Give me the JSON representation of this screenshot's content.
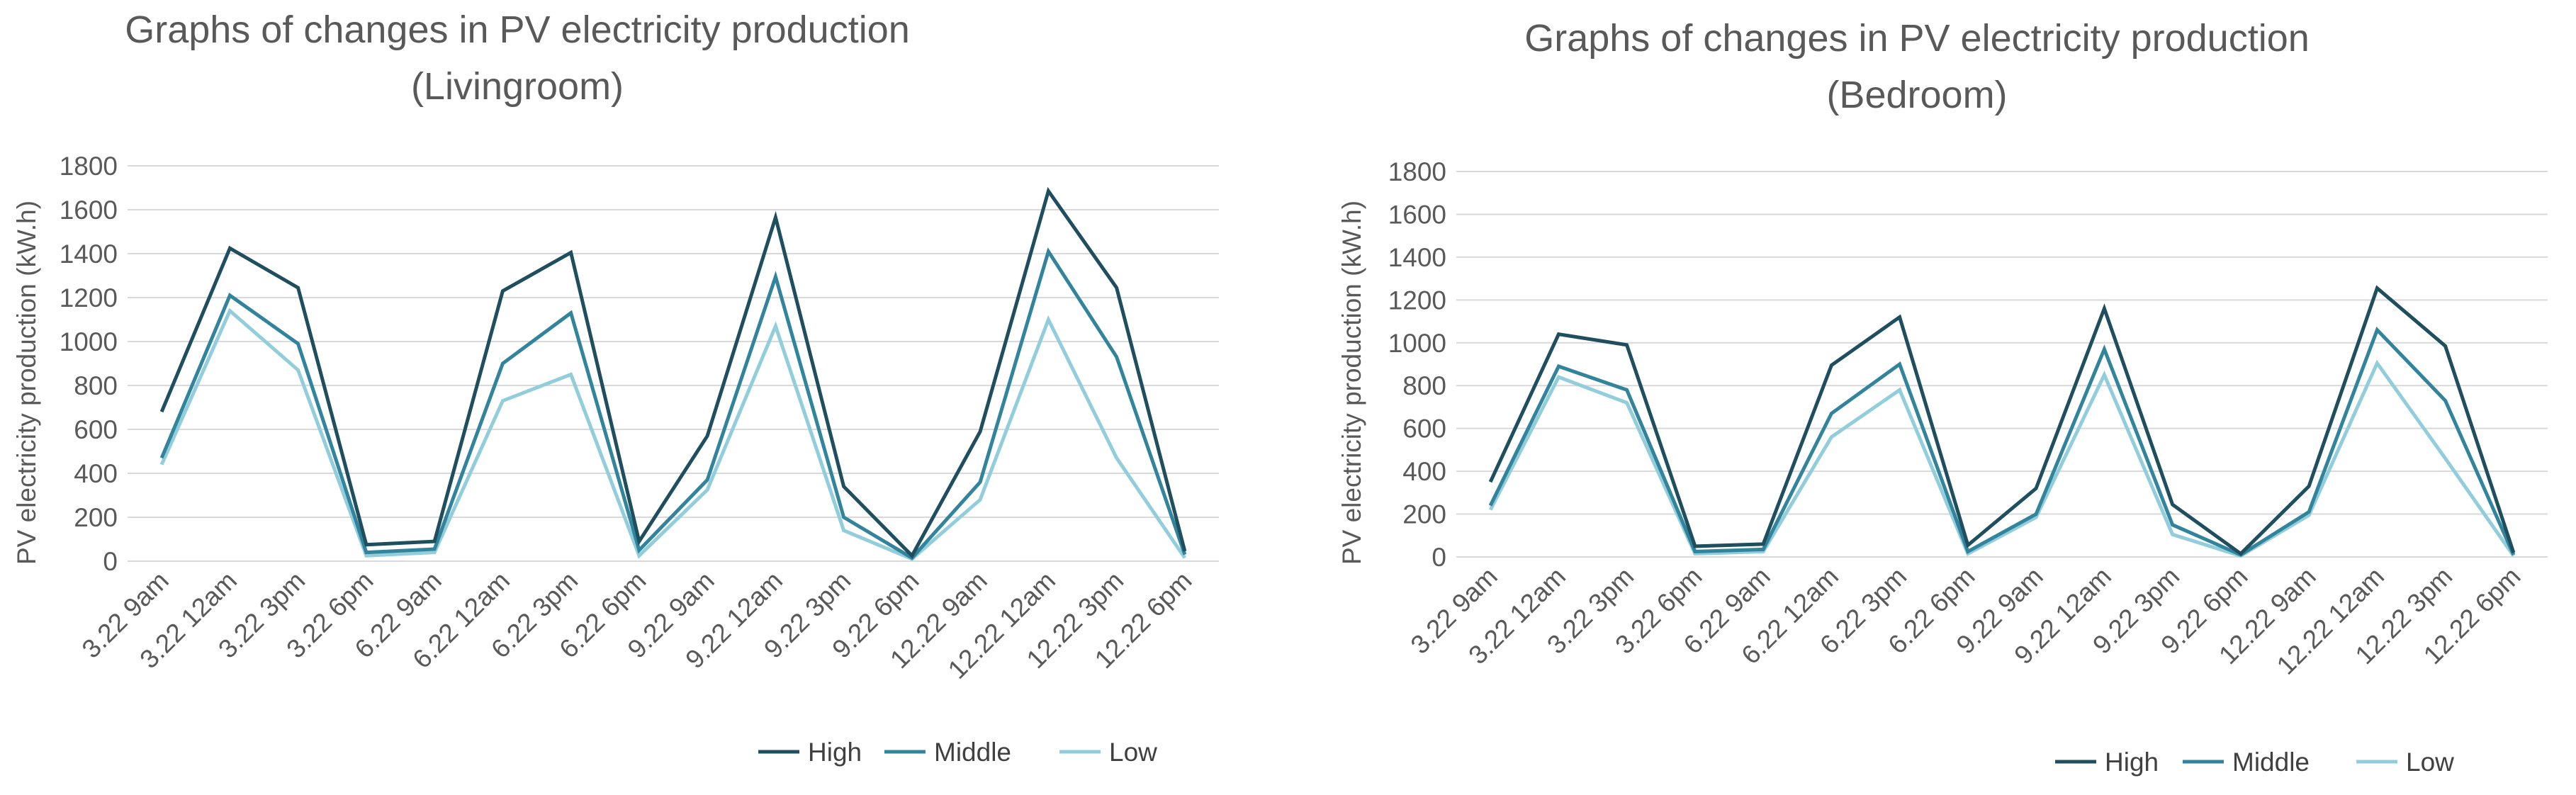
{
  "chart_data": [
    {
      "type": "line",
      "title": "Graphs of changes in PV electricity production",
      "subtitle": "(Livingroom)",
      "xlabel": "",
      "ylabel": "PV electricity production (kW.h)",
      "ylim": [
        0,
        1800
      ],
      "yticks": [
        "0",
        "200",
        "400",
        "600",
        "800",
        "1000",
        "1200",
        "1400",
        "1600",
        "1800"
      ],
      "grid": true,
      "legend_position": "bottom-right",
      "categories": [
        "3.22  9am",
        "3.22  12am",
        "3.22  3pm",
        "3.22  6pm",
        "6.22  9am",
        "6.22  12am",
        "6.22  3pm",
        "6.22  6pm",
        "9.22  9am",
        "9.22  12am",
        "9.22  3pm",
        "9.22  6pm",
        "12.22  9am",
        "12.22  12am",
        "12.22  3pm",
        "12.22  6pm"
      ],
      "series": [
        {
          "name": "High",
          "color": "#1f4e5f",
          "values": [
            680,
            1425,
            1245,
            75,
            90,
            1230,
            1405,
            90,
            570,
            1565,
            340,
            25,
            590,
            1685,
            1245,
            45
          ]
        },
        {
          "name": "Middle",
          "color": "#31849b",
          "values": [
            470,
            1210,
            990,
            40,
            55,
            900,
            1130,
            50,
            370,
            1295,
            200,
            15,
            360,
            1410,
            930,
            30
          ]
        },
        {
          "name": "Low",
          "color": "#92cddc",
          "values": [
            440,
            1140,
            870,
            25,
            40,
            730,
            850,
            25,
            325,
            1070,
            140,
            10,
            280,
            1100,
            470,
            15
          ]
        }
      ]
    },
    {
      "type": "line",
      "title": "Graphs of changes in PV electricity production",
      "subtitle": "(Bedroom)",
      "xlabel": "",
      "ylabel": "PV electricity production (kW.h)",
      "ylim": [
        0,
        1800
      ],
      "yticks": [
        "0",
        "200",
        "400",
        "600",
        "800",
        "1000",
        "1200",
        "1400",
        "1600",
        "1800"
      ],
      "grid": true,
      "legend_position": "bottom-right",
      "categories": [
        "3.22  9am",
        "3.22  12am",
        "3.22  3pm",
        "3.22  6pm",
        "6.22  9am",
        "6.22  12am",
        "6.22  3pm",
        "6.22  6pm",
        "9.22  9am",
        "9.22  12am",
        "9.22  3pm",
        "9.22  6pm",
        "12.22  9am",
        "12.22  12am",
        "12.22  3pm",
        "12.22  6pm"
      ],
      "series": [
        {
          "name": "High",
          "color": "#1f4e5f",
          "values": [
            350,
            1040,
            990,
            50,
            60,
            895,
            1120,
            55,
            320,
            1160,
            245,
            15,
            330,
            1255,
            985,
            20
          ]
        },
        {
          "name": "Middle",
          "color": "#31849b",
          "values": [
            240,
            890,
            780,
            25,
            35,
            670,
            900,
            25,
            200,
            970,
            150,
            10,
            210,
            1060,
            730,
            10
          ]
        },
        {
          "name": "Low",
          "color": "#92cddc",
          "values": [
            220,
            840,
            720,
            15,
            25,
            560,
            780,
            15,
            185,
            850,
            105,
            5,
            195,
            905,
            460,
            5
          ]
        }
      ]
    }
  ]
}
